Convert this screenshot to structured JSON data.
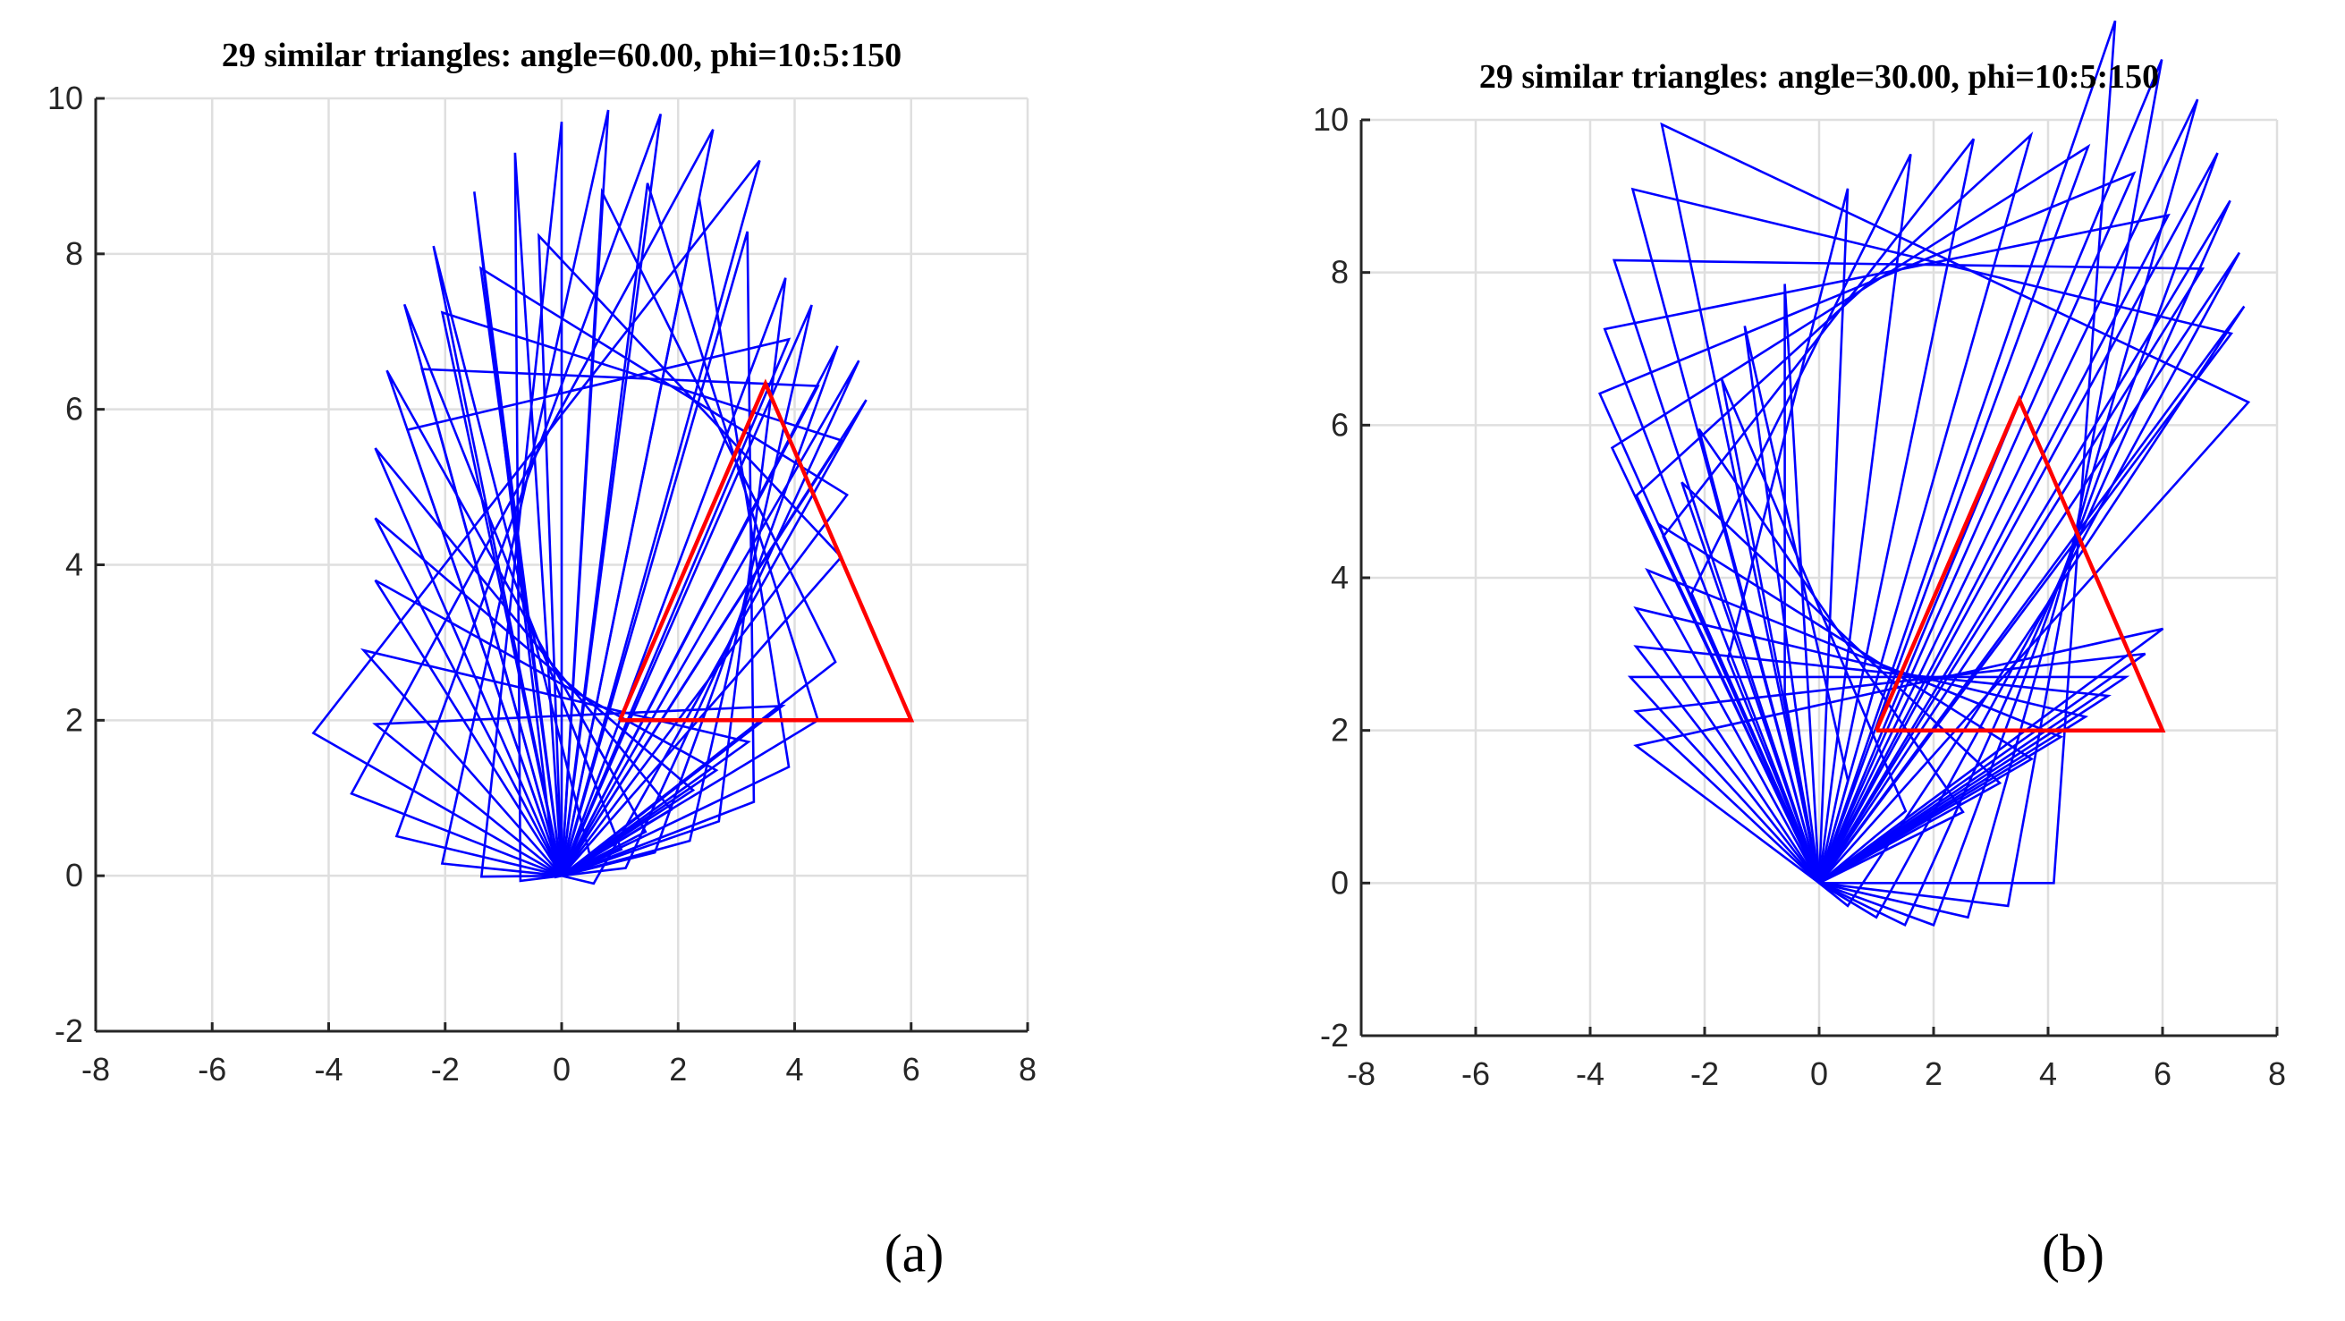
{
  "figure": {
    "captions": [
      "(a)",
      "(b)"
    ]
  },
  "chart_data": [
    {
      "type": "line",
      "panel": "a",
      "title": "29 similar triangles: angle=60.00, phi=10:5:150",
      "xlabel": "",
      "ylabel": "",
      "xlim": [
        -8,
        8
      ],
      "ylim": [
        -2,
        10
      ],
      "xticks": [
        -8,
        -6,
        -4,
        -2,
        0,
        2,
        4,
        6,
        8
      ],
      "yticks": [
        -2,
        0,
        2,
        4,
        6,
        8,
        10
      ],
      "grid": true,
      "angle": 60.0,
      "phi": {
        "start": 10,
        "step": 5,
        "end": 150,
        "count": 29
      },
      "reference_triangle": {
        "color": "#ff0000",
        "vertices": [
          [
            1,
            2
          ],
          [
            6,
            2
          ],
          [
            3.5,
            6.33
          ]
        ]
      },
      "series_color": "#0000ff",
      "envelope": {
        "cx": 1.25,
        "cy": 4.25,
        "rx": 2.0,
        "ry": 2.15
      },
      "far_vertices": [
        [
          0.55,
          -0.1
        ],
        [
          1.1,
          0.1
        ],
        [
          1.6,
          0.3
        ],
        [
          2.2,
          0.45
        ],
        [
          2.7,
          0.7
        ],
        [
          3.3,
          0.95
        ],
        [
          3.9,
          1.4
        ],
        [
          4.4,
          2.0
        ],
        [
          4.7,
          2.75
        ],
        [
          4.8,
          4.1
        ],
        [
          4.9,
          4.9
        ],
        [
          4.8,
          5.6
        ],
        [
          4.4,
          6.3
        ],
        [
          3.9,
          6.9
        ],
        [
          3.4,
          9.2
        ],
        [
          2.6,
          9.6
        ],
        [
          1.7,
          9.8
        ],
        [
          0.8,
          9.85
        ],
        [
          0.0,
          9.7
        ],
        [
          -0.8,
          9.3
        ],
        [
          -1.5,
          8.8
        ],
        [
          -2.2,
          8.1
        ],
        [
          -2.7,
          7.35
        ],
        [
          -3.0,
          6.5
        ],
        [
          -3.2,
          5.5
        ],
        [
          -3.2,
          4.6
        ],
        [
          -3.2,
          3.8
        ],
        [
          -3.4,
          2.9
        ],
        [
          -3.2,
          1.95
        ]
      ]
    },
    {
      "type": "line",
      "panel": "b",
      "title": "29 similar triangles: angle=30.00, phi=10:5:150",
      "xlabel": "",
      "ylabel": "",
      "xlim": [
        -8,
        8
      ],
      "ylim": [
        -2,
        10
      ],
      "xticks": [
        -8,
        -6,
        -4,
        -2,
        0,
        2,
        4,
        6,
        8
      ],
      "yticks": [
        -2,
        0,
        2,
        4,
        6,
        8,
        10
      ],
      "grid": true,
      "angle": 30.0,
      "phi": {
        "start": 10,
        "step": 5,
        "end": 150,
        "count": 29
      },
      "reference_triangle": {
        "color": "#ff0000",
        "vertices": [
          [
            1,
            2
          ],
          [
            6,
            2
          ],
          [
            3.5,
            6.33
          ]
        ]
      },
      "series_color": "#0000ff",
      "envelope": {
        "cx": 2.0,
        "cy": 5.4,
        "rx": 2.6,
        "ry": 2.7
      },
      "far_vertices": [
        [
          4.1,
          0.0
        ],
        [
          3.3,
          -0.3
        ],
        [
          2.6,
          -0.45
        ],
        [
          2.0,
          -0.55
        ],
        [
          1.5,
          -0.55
        ],
        [
          1.0,
          -0.45
        ],
        [
          0.5,
          -0.3
        ],
        [
          7.5,
          6.3
        ],
        [
          7.2,
          7.2
        ],
        [
          6.7,
          8.05
        ],
        [
          6.1,
          8.75
        ],
        [
          5.5,
          9.3
        ],
        [
          4.7,
          9.65
        ],
        [
          3.7,
          9.8
        ],
        [
          2.7,
          9.75
        ],
        [
          1.6,
          9.55
        ],
        [
          0.5,
          9.1
        ],
        [
          -0.6,
          7.85
        ],
        [
          -1.3,
          7.3
        ],
        [
          -1.7,
          6.6
        ],
        [
          -2.1,
          5.95
        ],
        [
          -2.4,
          5.25
        ],
        [
          -2.8,
          4.7
        ],
        [
          -3.0,
          4.1
        ],
        [
          -3.2,
          3.6
        ],
        [
          -3.2,
          3.1
        ],
        [
          -3.3,
          2.7
        ],
        [
          -3.2,
          2.25
        ],
        [
          -3.2,
          1.8
        ]
      ]
    }
  ]
}
